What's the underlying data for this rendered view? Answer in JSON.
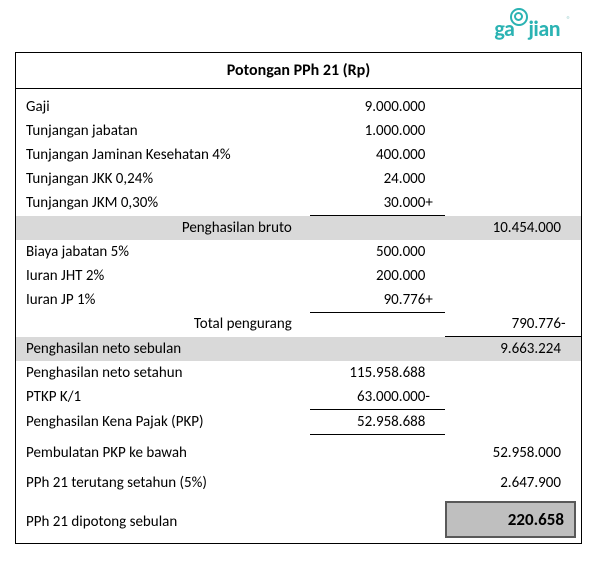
{
  "logo_text": "gaʘjian",
  "title": "Potongan PPh 21 (Rp)",
  "rows": {
    "gaji": {
      "label": "Gaji",
      "value": "9.000.000"
    },
    "tunjab": {
      "label": "Tunjangan jabatan",
      "value": "1.000.000"
    },
    "tunkes": {
      "label": "Tunjangan Jaminan Kesehatan 4%",
      "value": "400.000"
    },
    "jkk": {
      "label": "Tunjangan JKK 0,24%",
      "value": "24.000"
    },
    "jkm": {
      "label": "Tunjangan JKM 0,30%",
      "value": "30.000"
    },
    "bruto": {
      "label": "Penghasilan bruto",
      "value": "10.454.000"
    },
    "biayajab": {
      "label": "Biaya jabatan 5%",
      "value": "500.000"
    },
    "jht": {
      "label": "Iuran JHT 2%",
      "value": "200.000"
    },
    "jp": {
      "label": "Iuran JP 1%",
      "value": "90.776"
    },
    "pengurang": {
      "label": "Total pengurang",
      "value": "790.776"
    },
    "netobulan": {
      "label": "Penghasilan neto sebulan",
      "value": "9.663.224"
    },
    "netotahun": {
      "label": "Penghasilan neto setahun",
      "value": "115.958.688"
    },
    "ptkp": {
      "label": "PTKP K/1",
      "value": "63.000.000"
    },
    "pkp": {
      "label": "Penghasilan Kena Pajak (PKP)",
      "value": "52.958.688"
    },
    "bulat": {
      "label": "Pembulatan PKP ke bawah",
      "value": "52.958.000"
    },
    "terutang": {
      "label": "PPh 21 terutang setahun (5%)",
      "value": "2.647.900"
    },
    "potong": {
      "label": "PPh 21 dipotong sebulan",
      "value": "220.658"
    }
  },
  "style": {
    "shade_color": "#d9d9d9",
    "final_box_bg": "#bfbfbf",
    "final_box_border": "#595959",
    "font_family": "Calibri, Arial, sans-serif",
    "base_fontsize": 15,
    "title_fontsize": 16,
    "final_fontsize": 17,
    "logo_color": "#2bb3b3",
    "border_color": "#000000"
  }
}
